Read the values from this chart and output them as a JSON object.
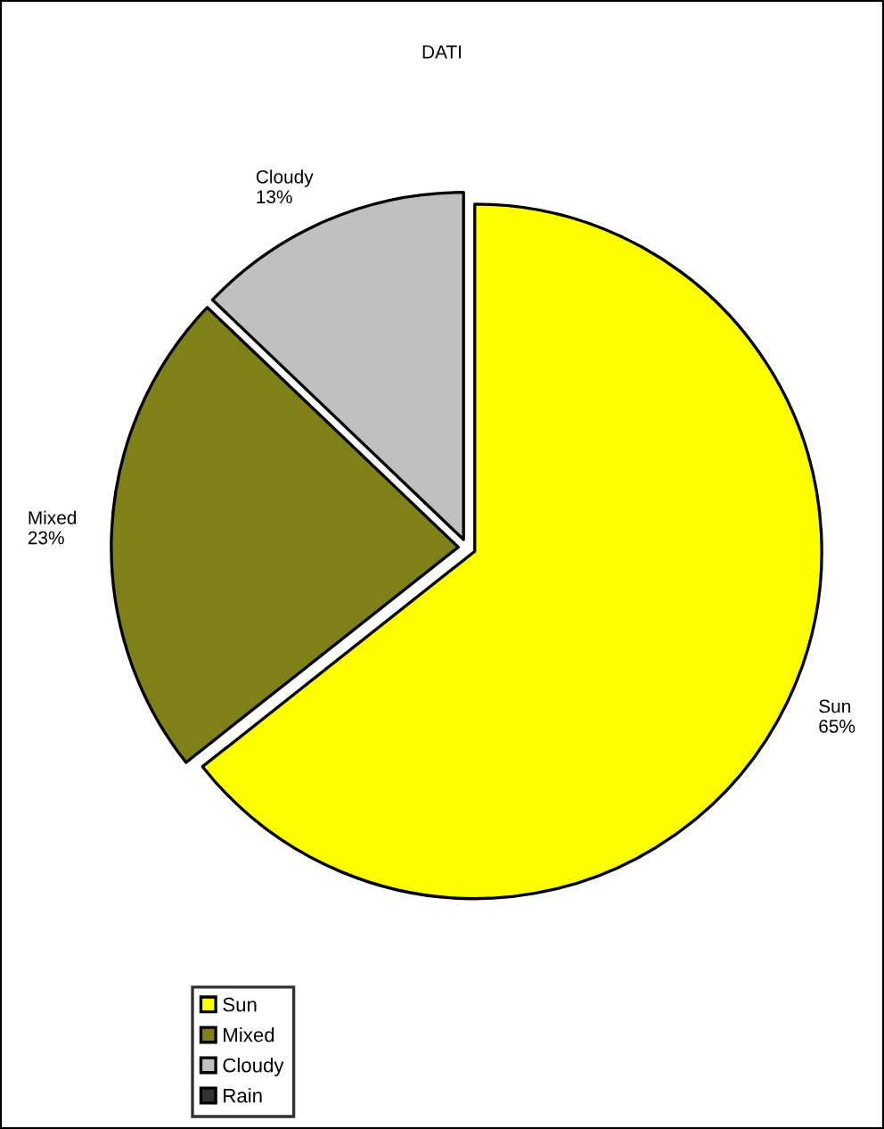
{
  "chart_data": {
    "type": "pie",
    "title": "DATI",
    "categories": [
      "Sun",
      "Mixed",
      "Cloudy",
      "Rain"
    ],
    "values": [
      65,
      23,
      13,
      0
    ],
    "value_labels": [
      "65%",
      "23%",
      "13%",
      null
    ],
    "colors": [
      "#ffff00",
      "#808019",
      "#c0c0c0",
      "#333333"
    ],
    "legend": "bottom left"
  }
}
